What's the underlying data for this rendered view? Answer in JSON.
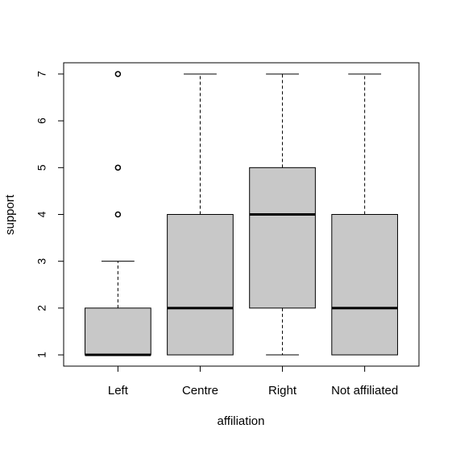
{
  "chart_data": {
    "type": "boxplot",
    "xlabel": "affiliation",
    "ylabel": "support",
    "ylim": [
      0.76,
      7.24
    ],
    "yticks": [
      1,
      2,
      3,
      4,
      5,
      6,
      7
    ],
    "categories": [
      "Left",
      "Centre",
      "Right",
      "Not affiliated"
    ],
    "boxes": [
      {
        "category": "Left",
        "whisker_low": 1,
        "q1": 1,
        "median": 1,
        "q3": 2,
        "whisker_high": 3,
        "outliers": [
          4,
          5,
          7
        ]
      },
      {
        "category": "Centre",
        "whisker_low": 1,
        "q1": 1,
        "median": 2,
        "q3": 4,
        "whisker_high": 7,
        "outliers": []
      },
      {
        "category": "Right",
        "whisker_low": 1,
        "q1": 2,
        "median": 4,
        "q3": 5,
        "whisker_high": 7,
        "outliers": []
      },
      {
        "category": "Not affiliated",
        "whisker_low": 1,
        "q1": 1,
        "median": 2,
        "q3": 4,
        "whisker_high": 7,
        "outliers": []
      }
    ],
    "box_fill": "#c8c8c8",
    "line_color": "#000000",
    "grid": false,
    "legend": "none"
  }
}
